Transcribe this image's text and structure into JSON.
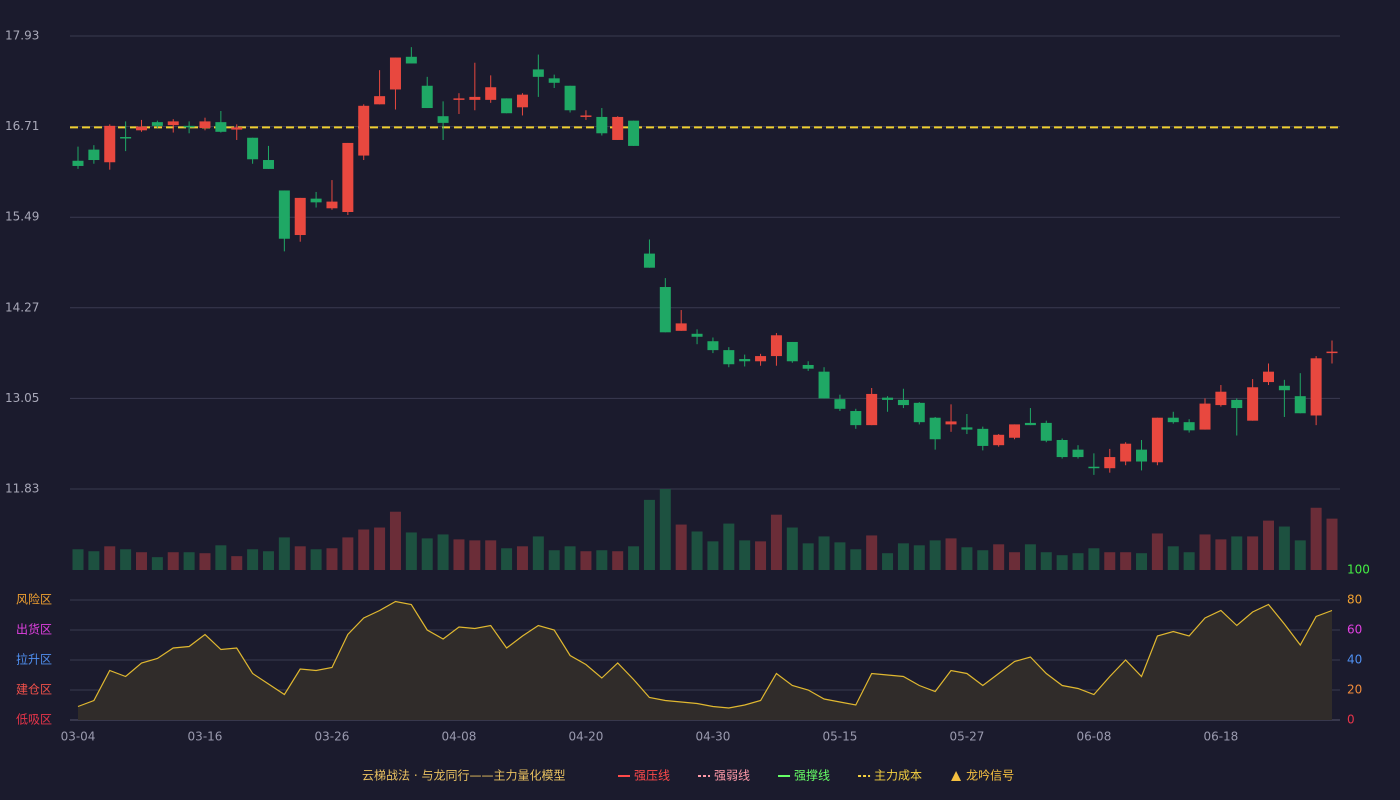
{
  "chart_data": {
    "type": "candlestick",
    "categories": [
      "03-04",
      null,
      null,
      null,
      null,
      null,
      null,
      null,
      "03-16",
      null,
      null,
      null,
      null,
      null,
      null,
      null,
      "03-26",
      null,
      null,
      null,
      null,
      null,
      null,
      null,
      "04-08",
      null,
      null,
      null,
      null,
      null,
      null,
      null,
      "04-20",
      null,
      null,
      null,
      null,
      null,
      null,
      null,
      "04-30",
      null,
      null,
      null,
      null,
      null,
      null,
      null,
      "05-15",
      null,
      null,
      null,
      null,
      null,
      null,
      null,
      "05-27",
      null,
      null,
      null,
      null,
      null,
      null,
      null,
      "06-08",
      null,
      null,
      null,
      null,
      null,
      null,
      null,
      "06-18",
      null,
      null,
      null,
      null,
      null,
      null,
      null
    ],
    "ylim": [
      11.83,
      17.93
    ],
    "yticks": [
      11.83,
      13.05,
      14.27,
      15.49,
      16.71,
      17.93
    ],
    "grid": true,
    "open": [
      16.25,
      16.4,
      16.23,
      16.57,
      16.66,
      16.77,
      16.73,
      16.72,
      16.69,
      16.77,
      16.67,
      16.56,
      16.26,
      15.85,
      15.25,
      15.74,
      15.61,
      15.56,
      16.32,
      17.01,
      17.21,
      17.65,
      17.26,
      16.85,
      17.07,
      17.07,
      17.07,
      17.09,
      16.97,
      17.48,
      17.36,
      17.26,
      16.85,
      16.84,
      16.53,
      16.79,
      15.0,
      14.55,
      13.96,
      13.92,
      13.82,
      13.7,
      13.58,
      13.55,
      13.62,
      13.81,
      13.5,
      13.41,
      13.04,
      12.88,
      12.69,
      13.06,
      13.03,
      12.99,
      12.79,
      12.7,
      12.66,
      12.64,
      12.42,
      12.52,
      12.72,
      12.72,
      12.49,
      12.36,
      12.13,
      12.11,
      12.2,
      12.36,
      12.19,
      12.79,
      12.73,
      12.63,
      12.96,
      13.03,
      12.75,
      13.27,
      13.22,
      13.08,
      12.82,
      13.66
    ],
    "high": [
      16.44,
      16.46,
      16.74,
      16.78,
      16.8,
      16.79,
      16.81,
      16.78,
      16.83,
      16.92,
      16.74,
      16.56,
      16.45,
      15.85,
      15.75,
      15.83,
      15.99,
      16.49,
      17.01,
      17.47,
      17.64,
      17.78,
      17.38,
      17.05,
      17.16,
      17.57,
      17.4,
      17.09,
      17.16,
      17.68,
      17.41,
      17.26,
      16.93,
      16.96,
      16.85,
      16.79,
      15.19,
      14.67,
      14.24,
      13.98,
      13.87,
      13.74,
      13.64,
      13.65,
      13.93,
      13.81,
      13.55,
      13.47,
      13.1,
      12.91,
      13.19,
      13.08,
      13.18,
      13.0,
      12.8,
      12.97,
      12.84,
      12.67,
      12.57,
      12.7,
      12.92,
      12.75,
      12.51,
      12.42,
      12.31,
      12.37,
      12.46,
      12.49,
      12.79,
      12.87,
      12.77,
      13.05,
      13.23,
      13.05,
      13.31,
      13.52,
      13.3,
      13.39,
      13.62,
      13.83
    ],
    "low": [
      16.14,
      16.21,
      16.13,
      16.38,
      16.64,
      16.69,
      16.63,
      16.62,
      16.66,
      16.63,
      16.53,
      16.21,
      16.14,
      15.03,
      15.16,
      15.62,
      15.59,
      15.52,
      16.26,
      17.01,
      16.94,
      17.56,
      16.96,
      16.53,
      16.88,
      16.93,
      17.03,
      16.89,
      16.86,
      17.11,
      17.23,
      16.9,
      16.8,
      16.59,
      16.53,
      16.45,
      14.81,
      13.94,
      13.96,
      13.78,
      13.66,
      13.47,
      13.48,
      13.49,
      13.49,
      13.53,
      13.42,
      13.05,
      12.88,
      12.64,
      12.69,
      12.87,
      12.92,
      12.7,
      12.36,
      12.6,
      12.57,
      12.35,
      12.4,
      12.5,
      12.69,
      12.46,
      12.24,
      12.24,
      12.02,
      12.05,
      12.15,
      12.08,
      12.15,
      12.71,
      12.59,
      12.63,
      12.94,
      12.55,
      12.75,
      13.23,
      12.8,
      12.85,
      12.69,
      13.52
    ],
    "close": [
      16.18,
      16.26,
      16.72,
      16.55,
      16.71,
      16.72,
      16.78,
      16.7,
      16.78,
      16.64,
      16.7,
      16.27,
      16.14,
      15.2,
      15.75,
      15.69,
      15.7,
      16.49,
      16.99,
      17.12,
      17.64,
      17.56,
      16.96,
      16.76,
      17.09,
      17.11,
      17.24,
      16.89,
      17.14,
      17.38,
      17.3,
      16.93,
      16.86,
      16.62,
      16.84,
      16.45,
      14.81,
      13.94,
      14.06,
      13.88,
      13.7,
      13.51,
      13.55,
      13.62,
      13.9,
      13.55,
      13.45,
      13.05,
      12.91,
      12.69,
      13.11,
      13.03,
      12.96,
      12.73,
      12.5,
      12.74,
      12.63,
      12.41,
      12.56,
      12.7,
      12.69,
      12.48,
      12.26,
      12.26,
      12.12,
      12.26,
      12.44,
      12.2,
      12.79,
      12.73,
      12.62,
      12.98,
      13.14,
      12.92,
      13.2,
      13.41,
      13.16,
      12.85,
      13.59,
      13.68
    ],
    "up_color": "#e8483f",
    "down_color": "#1fa865",
    "cost_line": {
      "value": 16.7,
      "color": "#f0d030"
    },
    "volume": {
      "values": [
        21,
        19,
        24,
        21,
        18,
        13,
        18,
        18,
        17,
        25,
        14,
        21,
        19,
        33,
        24,
        21,
        22,
        33,
        41,
        43,
        59,
        38,
        32,
        36,
        31,
        30,
        30,
        22,
        24,
        34,
        20,
        24,
        19,
        20,
        19,
        24,
        71,
        82,
        46,
        39,
        29,
        47,
        30,
        29,
        56,
        43,
        27,
        34,
        28,
        21,
        35,
        17,
        27,
        25,
        30,
        32,
        23,
        20,
        26,
        18,
        26,
        18,
        15,
        17,
        22,
        18,
        18,
        17,
        37,
        24,
        18,
        36,
        31,
        34,
        34,
        50,
        44,
        30,
        63,
        52
      ],
      "up_color": "#6b2d38",
      "down_color": "#1d5140"
    },
    "indicator": {
      "ylim": [
        0,
        100
      ],
      "yticks": [
        0,
        20,
        40,
        60,
        80,
        100
      ],
      "ytick_colors": [
        "#e8354a",
        "#f08a3a",
        "#4f8ff0",
        "#e040e0",
        "#f0a030",
        "#44ee44"
      ],
      "zones": [
        {
          "label": "低吸区",
          "value": 0,
          "color": "#e8354a"
        },
        {
          "label": "建仓区",
          "value": 20,
          "color": "#f0504a"
        },
        {
          "label": "拉升区",
          "value": 40,
          "color": "#4f8ff0"
        },
        {
          "label": "出货区",
          "value": 60,
          "color": "#e040e0"
        },
        {
          "label": "风险区",
          "value": 80,
          "color": "#f0a030"
        }
      ],
      "values": [
        9,
        13,
        33,
        29,
        38,
        41,
        48,
        49,
        57,
        47,
        48,
        31,
        24,
        17,
        34,
        33,
        35,
        57,
        68,
        73,
        79,
        77,
        60,
        54,
        62,
        61,
        63,
        48,
        56,
        63,
        60,
        43,
        37,
        28,
        38,
        27,
        15,
        13,
        12,
        11,
        9,
        8,
        10,
        13,
        31,
        23,
        20,
        14,
        12,
        10,
        31,
        30,
        29,
        23,
        19,
        33,
        31,
        23,
        31,
        39,
        42,
        31,
        23,
        21,
        17,
        29,
        40,
        29,
        56,
        59,
        56,
        68,
        73,
        63,
        72,
        77,
        64,
        50,
        69,
        73
      ],
      "color": "#e0b830",
      "fill": "#302c2a"
    },
    "legend": {
      "title": "云梯战法 · 与龙同行——主力量化模型",
      "title_color": "#e8c060",
      "items": [
        {
          "name": "强压线",
          "color": "#ff4a4a",
          "style": "solid"
        },
        {
          "name": "强弱线",
          "color": "#ff9aa8",
          "style": "dashed"
        },
        {
          "name": "强撑线",
          "color": "#66ff66",
          "style": "solid"
        },
        {
          "name": "主力成本",
          "color": "#f5d040",
          "style": "dashed"
        },
        {
          "name": "龙吟信号",
          "color": "#f5c040",
          "style": "triangle"
        }
      ]
    }
  }
}
